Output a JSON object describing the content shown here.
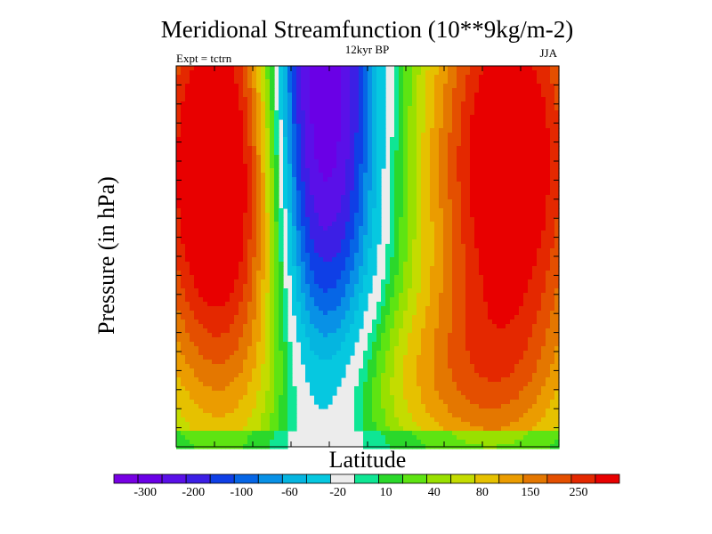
{
  "chart_data": {
    "type": "heatmap",
    "title": "Meridional Streamfunction (10**9kg/m-2)",
    "subtitle": "12kyr BP",
    "left_label": "Expt = tctrn",
    "right_label": "JJA",
    "xlabel": "Latitude",
    "ylabel": "Pressure (in hPa)",
    "colorbar": {
      "colors": [
        "#7700e3",
        "#6a00e6",
        "#5a10e8",
        "#3c1fe5",
        "#0f3fe6",
        "#0666e6",
        "#0891e6",
        "#05b5e0",
        "#06c8e0",
        "#ececec",
        "#0fe694",
        "#2bd82b",
        "#5ee412",
        "#99e000",
        "#c4dc00",
        "#e6c100",
        "#eb9c00",
        "#e47700",
        "#e44f00",
        "#e42800",
        "#e80000"
      ],
      "tick_labels": [
        "-300",
        "-200",
        "-100",
        "-60",
        "-20",
        "10",
        "40",
        "80",
        "150",
        "250"
      ]
    },
    "field_description": "Southern hemisphere positive (red) cell, tropical negative (purple) cell, northern positive cell",
    "colors": {
      "frame": "#000000",
      "gap": "#ececec"
    }
  }
}
